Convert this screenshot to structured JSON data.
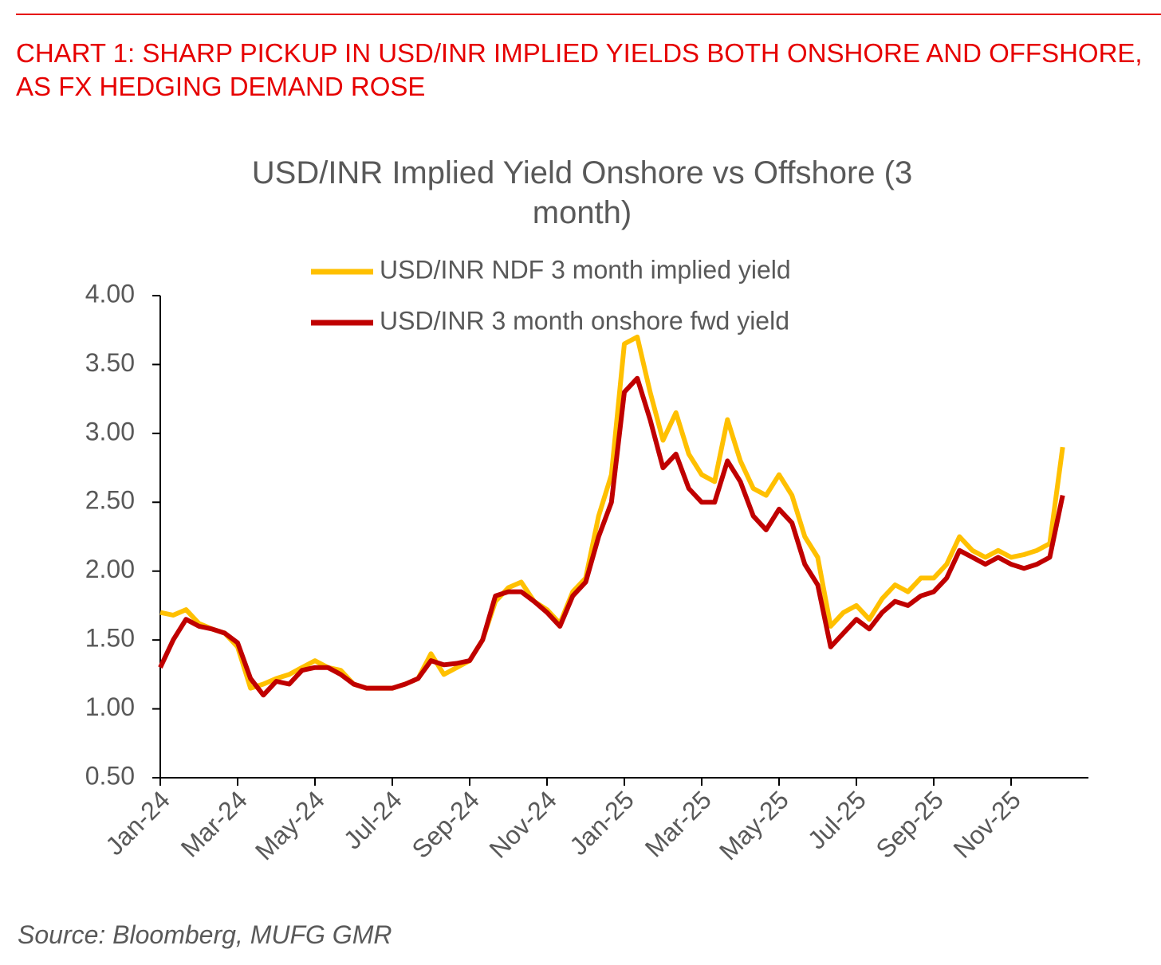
{
  "header": {
    "title": "CHART 1: SHARP PICKUP IN USD/INR IMPLIED YIELDS BOTH ONSHORE AND OFFSHORE, AS FX HEDGING DEMAND ROSE",
    "source": "Source: Bloomberg, MUFG GMR"
  },
  "chart_data": {
    "type": "line",
    "title": "USD/INR Implied Yield Onshore vs Offshore (3 month)",
    "categories": [
      "Jan-24",
      null,
      null,
      null,
      null,
      null,
      "Mar-24",
      null,
      null,
      null,
      null,
      null,
      "May-24",
      null,
      null,
      null,
      null,
      null,
      "Jul-24",
      null,
      null,
      null,
      null,
      null,
      "Sep-24",
      null,
      null,
      null,
      null,
      null,
      "Nov-24",
      null,
      null,
      null,
      null,
      null,
      "Jan-25",
      null,
      null,
      null,
      null,
      null,
      "Mar-25",
      null,
      null,
      null,
      null,
      null,
      "May-25",
      null,
      null,
      null,
      null,
      null,
      "Jul-25",
      null,
      null,
      null,
      null,
      null,
      "Sep-25",
      null,
      null,
      null,
      null,
      null,
      "Nov-25",
      null,
      null,
      null,
      null
    ],
    "series": [
      {
        "name": "USD/INR NDF 3 month implied yield",
        "color": "#FFC000",
        "values": [
          1.7,
          1.68,
          1.72,
          1.62,
          1.58,
          1.55,
          1.45,
          1.15,
          1.18,
          1.22,
          1.25,
          1.3,
          1.35,
          1.3,
          1.28,
          1.18,
          1.15,
          1.15,
          1.15,
          1.18,
          1.22,
          1.4,
          1.25,
          1.3,
          1.35,
          1.5,
          1.78,
          1.88,
          1.92,
          1.78,
          1.72,
          1.62,
          1.85,
          1.95,
          2.4,
          2.7,
          3.65,
          3.7,
          3.3,
          2.95,
          3.15,
          2.85,
          2.7,
          2.65,
          3.1,
          2.8,
          2.6,
          2.55,
          2.7,
          2.55,
          2.25,
          2.1,
          1.6,
          1.7,
          1.75,
          1.65,
          1.8,
          1.9,
          1.85,
          1.95,
          1.95,
          2.05,
          2.25,
          2.15,
          2.1,
          2.15,
          2.1,
          2.12,
          2.15,
          2.2,
          2.9
        ]
      },
      {
        "name": "USD/INR 3 month onshore fwd yield",
        "color": "#C00000",
        "values": [
          1.3,
          1.5,
          1.65,
          1.6,
          1.58,
          1.55,
          1.48,
          1.22,
          1.1,
          1.2,
          1.18,
          1.28,
          1.3,
          1.3,
          1.25,
          1.18,
          1.15,
          1.15,
          1.15,
          1.18,
          1.22,
          1.35,
          1.32,
          1.33,
          1.35,
          1.5,
          1.82,
          1.85,
          1.85,
          1.78,
          1.7,
          1.6,
          1.82,
          1.92,
          2.25,
          2.5,
          3.3,
          3.4,
          3.1,
          2.75,
          2.85,
          2.6,
          2.5,
          2.5,
          2.8,
          2.65,
          2.4,
          2.3,
          2.45,
          2.35,
          2.05,
          1.9,
          1.45,
          1.55,
          1.65,
          1.58,
          1.7,
          1.78,
          1.75,
          1.82,
          1.85,
          1.95,
          2.15,
          2.1,
          2.05,
          2.1,
          2.05,
          2.02,
          2.05,
          2.1,
          2.55
        ]
      }
    ],
    "ylim": [
      0.5,
      4
    ],
    "yticks": [
      {
        "value": 0.5,
        "label": "0.50"
      },
      {
        "value": 1,
        "label": "1.00"
      },
      {
        "value": 1.5,
        "label": "1.50"
      },
      {
        "value": 2,
        "label": "2.00"
      },
      {
        "value": 2.5,
        "label": "2.50"
      },
      {
        "value": 3,
        "label": "3.00"
      },
      {
        "value": 3.5,
        "label": "3.50"
      },
      {
        "value": 4,
        "label": "4.00"
      }
    ],
    "legend": "top"
  }
}
